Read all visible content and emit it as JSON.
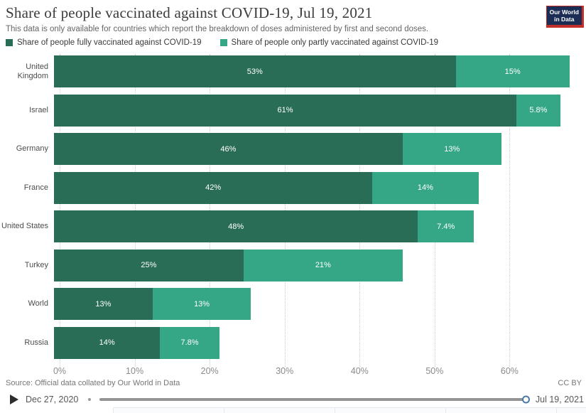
{
  "header": {
    "title": "Share of people vaccinated against COVID-19, Jul 19, 2021",
    "subtitle": "This data is only available for countries which report the breakdown of doses administered by first and second doses."
  },
  "logo": {
    "line1": "Our World",
    "line2": "in Data",
    "bg_color": "#1b2d55",
    "frame_color": "#c22f2a"
  },
  "legend": {
    "items": [
      {
        "label": "Share of people fully vaccinated against COVID-19",
        "color": "#2a6d57"
      },
      {
        "label": "Share of people only partly vaccinated against COVID-19",
        "color": "#35a786"
      }
    ]
  },
  "chart_data": {
    "type": "bar",
    "stacked": true,
    "orientation": "horizontal",
    "title": "Share of people vaccinated against COVID-19, Jul 19, 2021",
    "categories": [
      "United Kingdom",
      "Israel",
      "Germany",
      "France",
      "United States",
      "Turkey",
      "World",
      "Russia"
    ],
    "series": [
      {
        "name": "Share of people fully vaccinated against COVID-19",
        "color": "#2a6d57",
        "values": [
          53,
          61,
          46,
          42,
          48,
          25,
          13,
          14
        ],
        "labels": [
          "53%",
          "61%",
          "46%",
          "42%",
          "48%",
          "25%",
          "13%",
          "14%"
        ]
      },
      {
        "name": "Share of people only partly vaccinated against COVID-19",
        "color": "#35a786",
        "values": [
          15,
          5.8,
          13,
          14,
          7.4,
          21,
          13,
          7.8
        ],
        "labels": [
          "15%",
          "5.8%",
          "13%",
          "14%",
          "7.4%",
          "21%",
          "13%",
          "7.8%"
        ]
      }
    ],
    "x_axis": {
      "ticks": [
        0,
        10,
        20,
        30,
        40,
        50,
        60
      ],
      "tick_labels": [
        "0%",
        "10%",
        "20%",
        "30%",
        "40%",
        "50%",
        "60%"
      ],
      "max": 70
    },
    "grid": "vertical-dotted",
    "legend_position": "top",
    "value_label_color": "#ffffff"
  },
  "footer": {
    "source": "Source: Official data collated by Our World in Data",
    "license": "CC BY"
  },
  "timeline": {
    "start_date": "Dec 27, 2020",
    "end_date": "Jul 19, 2021",
    "handle_color": "#4a7aa8"
  }
}
